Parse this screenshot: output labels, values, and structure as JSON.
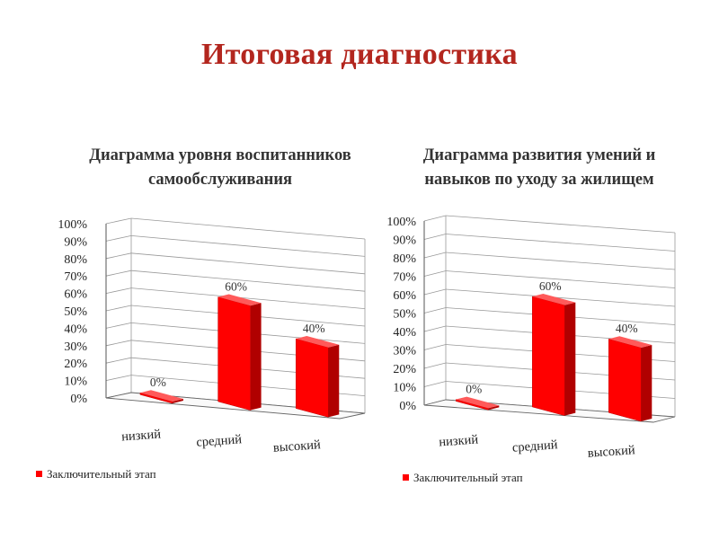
{
  "page": {
    "title": "Итоговая диагностика"
  },
  "charts": [
    {
      "title": "Диаграмма уровня воспитанников\nсамообслуживания"
    },
    {
      "title": "Диаграмма развития умений и\nнавыков по уходу за жилищем"
    }
  ],
  "colors": {
    "bar": "#ff0000",
    "bar_side": "#b00000",
    "bar_top": "#ff5a5a",
    "title": "#b3261e",
    "grid": "#999999"
  },
  "chart_data": [
    {
      "type": "bar",
      "title": "Диаграмма уровня воспитанников самообслуживания",
      "categories": [
        "низкий",
        "средний",
        "высокий"
      ],
      "series": [
        {
          "name": "Заключительный этап",
          "values": [
            0,
            60,
            40
          ]
        }
      ],
      "data_labels": [
        "0%",
        "60%",
        "40%"
      ],
      "ylim": [
        0,
        100
      ],
      "yticks": [
        "0%",
        "10%",
        "20%",
        "30%",
        "40%",
        "50%",
        "60%",
        "70%",
        "80%",
        "90%",
        "100%"
      ],
      "grid": true,
      "legend": "bottom-left",
      "style": "3d"
    },
    {
      "type": "bar",
      "title": "Диаграмма развития умений и навыков по уходу за жилищем",
      "categories": [
        "низкий",
        "средний",
        "высокий"
      ],
      "series": [
        {
          "name": "Заключительный этап",
          "values": [
            0,
            60,
            40
          ]
        }
      ],
      "data_labels": [
        "0%",
        "60%",
        "40%"
      ],
      "ylim": [
        0,
        100
      ],
      "yticks": [
        "0%",
        "10%",
        "20%",
        "30%",
        "40%",
        "50%",
        "60%",
        "70%",
        "80%",
        "90%",
        "100%"
      ],
      "grid": true,
      "legend": "bottom-left",
      "style": "3d"
    }
  ]
}
